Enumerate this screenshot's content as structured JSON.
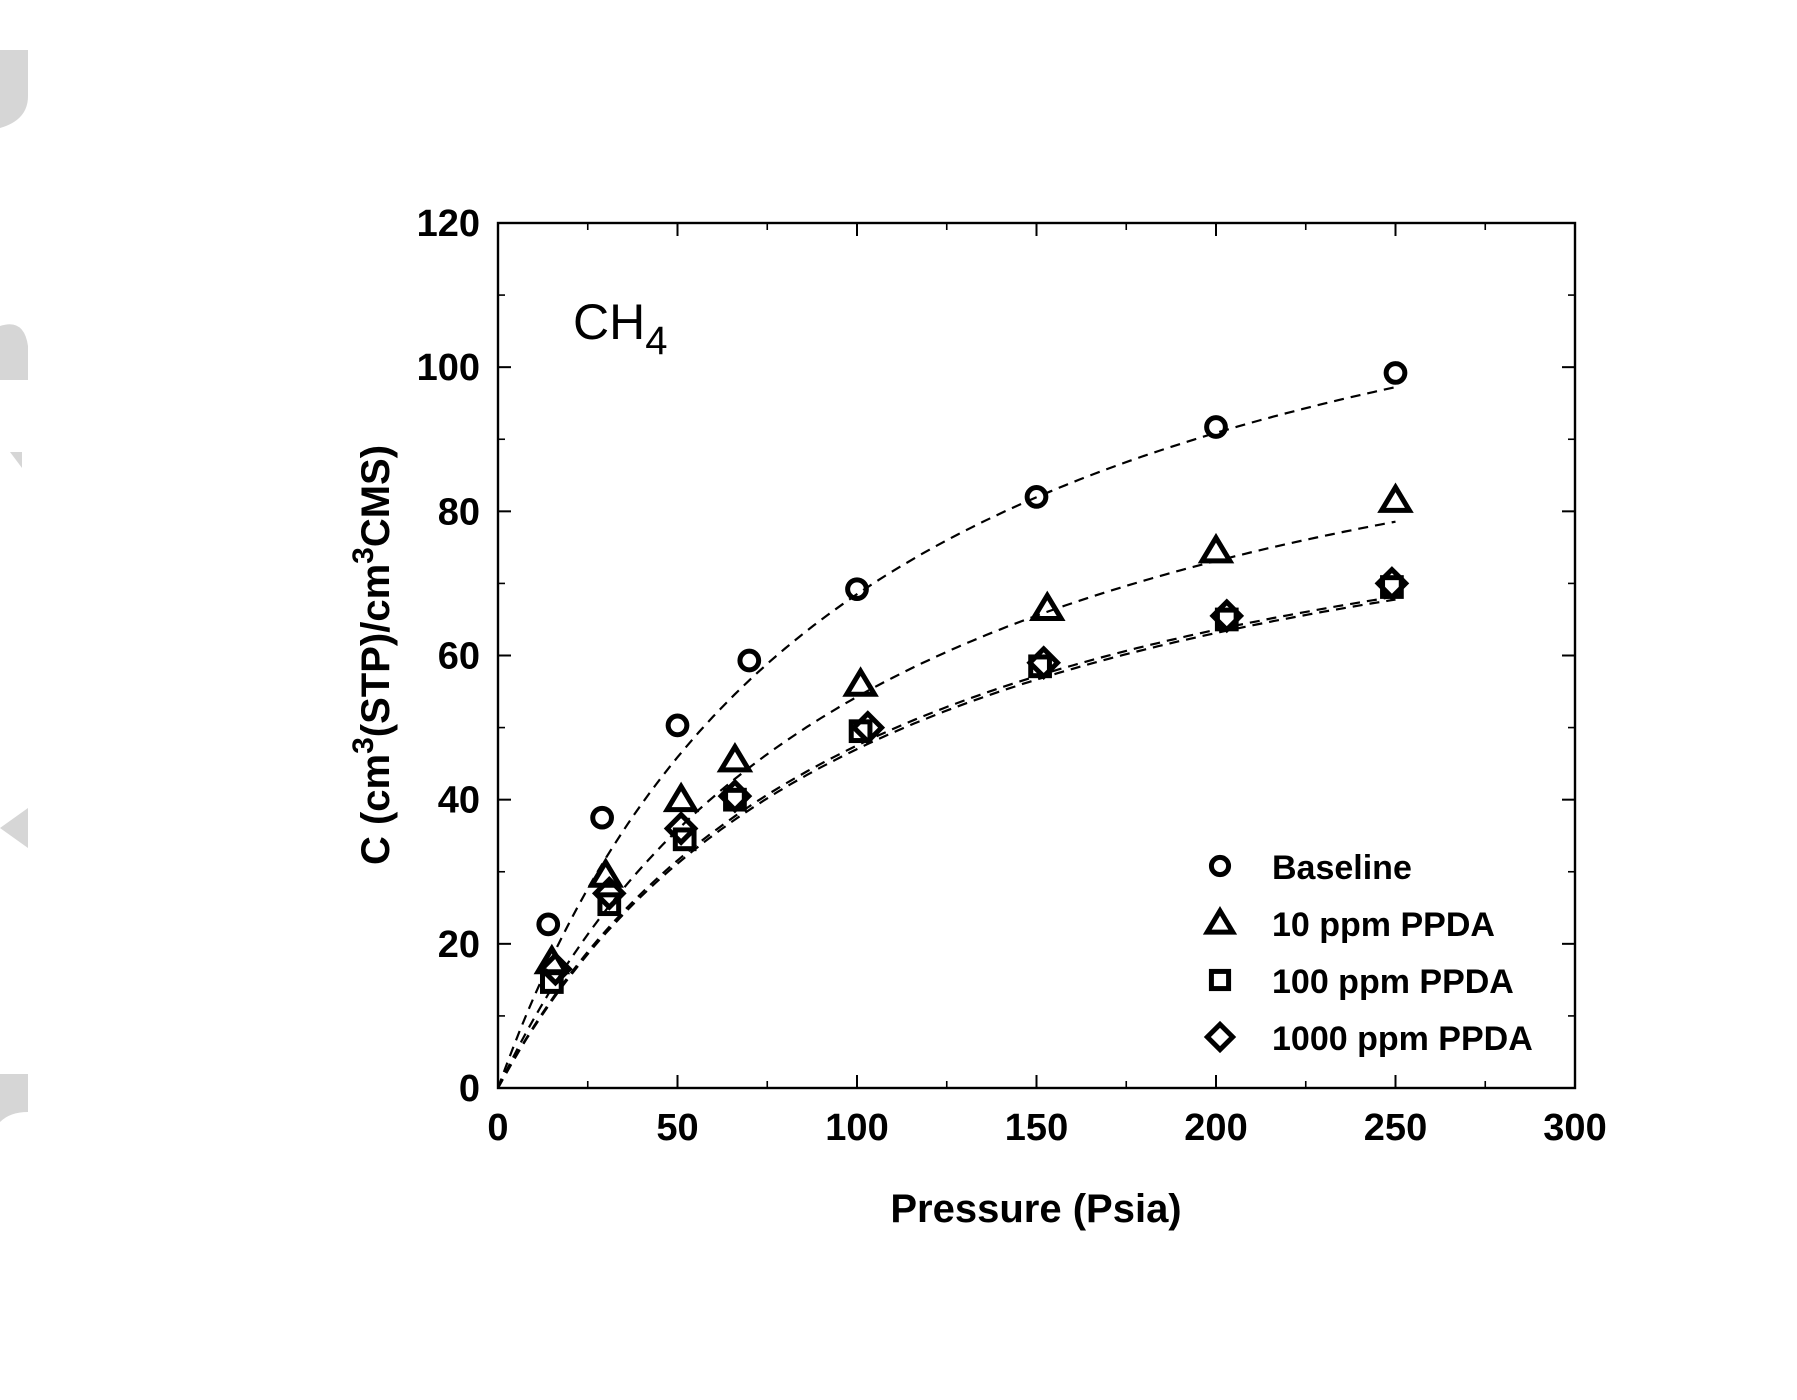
{
  "chart_data": {
    "type": "scatter",
    "annotation": {
      "main": "CH",
      "sub": "4"
    },
    "xlabel": "Pressure (Psia)",
    "ylabel": {
      "parts": [
        {
          "text": "C (cm",
          "sup": false
        },
        {
          "text": "3",
          "sup": true
        },
        {
          "text": "(STP)/cm",
          "sup": false
        },
        {
          "text": "3",
          "sup": true
        },
        {
          "text": "CMS)",
          "sup": false
        }
      ]
    },
    "xlim": [
      0,
      300
    ],
    "ylim": [
      0,
      120
    ],
    "x_ticks": [
      0,
      50,
      100,
      150,
      200,
      250,
      300
    ],
    "x_tick_labels": [
      "0",
      "50",
      "100",
      "150",
      "200",
      "250",
      "300"
    ],
    "y_ticks": [
      0,
      20,
      40,
      60,
      80,
      100,
      120
    ],
    "y_tick_labels": [
      "0",
      "20",
      "40",
      "60",
      "80",
      "100",
      "120"
    ],
    "x_minor_step": 25,
    "y_minor_step": 10,
    "grid": false,
    "legend_position": "bottom-right",
    "fit_lines": "dashed",
    "series": [
      {
        "name": "Baseline",
        "marker": "circle",
        "color": "#000000",
        "x": [
          14,
          29,
          50,
          70,
          100,
          150,
          200,
          250
        ],
        "y": [
          22.7,
          37.5,
          50.3,
          59.3,
          69.2,
          82.0,
          91.7,
          99.2
        ],
        "fit": {
          "q": 135,
          "b": 0.0103
        }
      },
      {
        "name": "10 ppm PPDA",
        "marker": "triangle",
        "color": "#000000",
        "x": [
          15,
          30,
          51,
          66,
          101,
          153,
          200,
          250
        ],
        "y": [
          17.5,
          29.5,
          40.0,
          45.5,
          56.0,
          66.5,
          74.5,
          81.5
        ],
        "fit": {
          "q": 112,
          "b": 0.0094
        }
      },
      {
        "name": "100 ppm PPDA",
        "marker": "square",
        "color": "#000000",
        "x": [
          15,
          31,
          52,
          66,
          101,
          151,
          203,
          249
        ],
        "y": [
          14.7,
          25.5,
          34.5,
          40.0,
          49.5,
          58.5,
          65.0,
          69.5
        ],
        "fit": {
          "q": 96,
          "b": 0.0096
        }
      },
      {
        "name": "1000 ppm PPDA",
        "marker": "diamond",
        "color": "#000000",
        "x": [
          16,
          31,
          51,
          66,
          103,
          152,
          203,
          249
        ],
        "y": [
          16.5,
          27.0,
          36.0,
          40.5,
          50.0,
          59.0,
          65.5,
          70.0
        ],
        "fit": {
          "q": 96,
          "b": 0.0098
        }
      }
    ]
  }
}
